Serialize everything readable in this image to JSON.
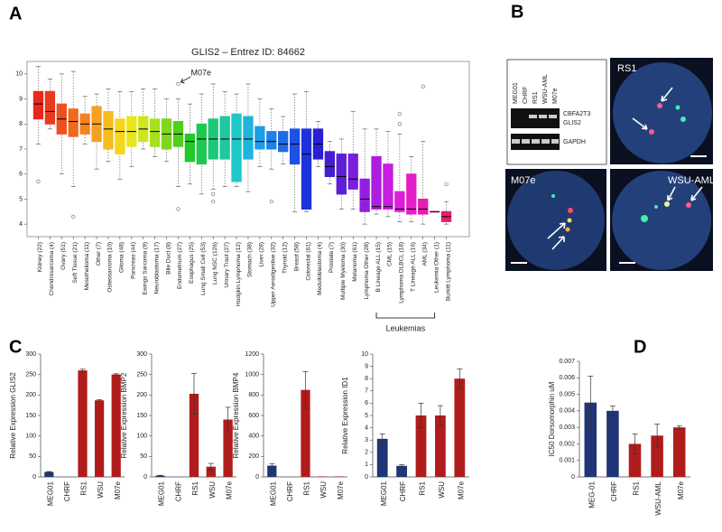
{
  "panel_labels": [
    "A",
    "B",
    "C",
    "D"
  ],
  "gel": {
    "lanes": [
      "MEG01",
      "CHRF",
      "RS1",
      "WSU-AML",
      "M07e"
    ],
    "bands": [
      "CBFA2T3",
      "GLIS2",
      "GAPDH"
    ]
  },
  "fish": [
    "RS1",
    "M07e",
    "WSU-AML"
  ],
  "chart_data": [
    {
      "type": "box",
      "title": "GLIS2 – Entrez ID: 84662",
      "categories": [
        "Kidney (22)",
        "Chondrosarcoma (4)",
        "Ovary (51)",
        "Soft Tissue (21)",
        "Mesothelioma (11)",
        "Other (7)",
        "Osteosarcoma (10)",
        "Glioma (48)",
        "Pancreas (44)",
        "Ewings Sarcoma (9)",
        "Neuroblastoma (17)",
        "Bile Duct (8)",
        "Endometrium (27)",
        "Esophagus (25)",
        "Lung Small Cell (53)",
        "Lung NSC (126)",
        "Urinary Tract (27)",
        "Hodgkin Lymphoma (12)",
        "Stomach (38)",
        "Liver (28)",
        "Upper Aerodigestive (32)",
        "Thyroid (12)",
        "Breast (58)",
        "Colorectal (61)",
        "Medulloblastoma (4)",
        "Prostate (7)",
        "Multiple Myeloma (30)",
        "Melanoma (61)",
        "Lymphoma Other (28)",
        "B Lineage ALL (15)",
        "CML (15)",
        "Lymphoma DLBCL (18)",
        "T Lineage ALL (16)",
        "AML (34)",
        "Leukemia Other (1)",
        "Burkitt Lymphoma (11)"
      ],
      "whisker_low": [
        7.2,
        7.8,
        6.0,
        5.5,
        7.2,
        6.2,
        6.5,
        5.8,
        6.3,
        7.0,
        6.7,
        6.5,
        5.5,
        5.6,
        5.2,
        5.4,
        5.5,
        5.5,
        5.3,
        6.3,
        6.2,
        6.4,
        4.5,
        4.5,
        6.3,
        5.6,
        4.6,
        4.6,
        4.0,
        4.4,
        4.3,
        4.1,
        4.1,
        4.0,
        4.5,
        4.0
      ],
      "q1": [
        8.2,
        8.0,
        7.6,
        7.5,
        7.6,
        7.3,
        7.0,
        6.8,
        7.1,
        7.3,
        7.1,
        7.0,
        7.1,
        6.5,
        6.4,
        6.6,
        6.6,
        5.7,
        6.6,
        7.0,
        7.0,
        6.9,
        6.4,
        4.6,
        6.6,
        5.9,
        5.2,
        5.4,
        4.5,
        4.6,
        4.6,
        4.5,
        4.4,
        4.4,
        4.5,
        4.1
      ],
      "median": [
        8.8,
        8.5,
        8.2,
        8.1,
        8.0,
        8.0,
        7.8,
        7.7,
        7.7,
        7.8,
        7.7,
        7.6,
        7.6,
        7.3,
        7.4,
        7.4,
        7.4,
        7.4,
        7.4,
        7.3,
        7.3,
        7.2,
        7.2,
        6.8,
        7.2,
        6.3,
        5.9,
        5.8,
        5.0,
        4.7,
        4.7,
        4.6,
        4.6,
        4.6,
        4.5,
        4.3
      ],
      "q3": [
        9.3,
        9.3,
        8.8,
        8.6,
        8.4,
        8.7,
        8.5,
        8.2,
        8.3,
        8.3,
        8.2,
        8.2,
        8.1,
        7.6,
        8.0,
        8.2,
        8.3,
        8.4,
        8.3,
        7.9,
        7.7,
        7.7,
        7.8,
        7.8,
        7.8,
        6.9,
        6.8,
        6.8,
        5.8,
        6.7,
        6.4,
        5.3,
        6.0,
        5.0,
        4.5,
        4.5
      ],
      "whisker_high": [
        10.3,
        9.8,
        10.0,
        10.1,
        9.1,
        9.2,
        9.4,
        9.3,
        9.3,
        9.4,
        9.4,
        9.0,
        9.0,
        8.8,
        9.2,
        9.6,
        9.3,
        9.2,
        9.6,
        9.0,
        8.6,
        8.3,
        9.2,
        9.3,
        8.1,
        7.3,
        7.4,
        8.5,
        7.8,
        7.8,
        7.7,
        7.6,
        6.7,
        7.3,
        4.5,
        4.9
      ],
      "outliers": [
        [
          5.7
        ],
        [],
        [],
        [
          4.3
        ],
        [],
        [],
        [],
        [],
        [],
        [],
        [],
        [],
        [
          9.6,
          4.6
        ],
        [],
        [],
        [
          5.2,
          4.9
        ],
        [],
        [],
        [],
        [],
        [
          4.9
        ],
        [],
        [],
        [],
        [],
        [],
        [],
        [],
        [],
        [],
        [],
        [
          8.4,
          8.0
        ],
        [],
        [
          9.5
        ],
        [],
        [
          5.6
        ]
      ],
      "colors": [
        "#e8281e",
        "#e83a1e",
        "#f0501e",
        "#f06a1e",
        "#f58220",
        "#f5a020",
        "#f5bd1e",
        "#f5d51e",
        "#e8e61e",
        "#cde61e",
        "#a8e01e",
        "#7ed61e",
        "#4fd01e",
        "#22c82a",
        "#1ec850",
        "#1ec878",
        "#1ec8a0",
        "#1ec8c8",
        "#1eb4dc",
        "#1e9ce6",
        "#1e82e6",
        "#1e6ae6",
        "#1e50e6",
        "#1e32dc",
        "#2a1ed2",
        "#461ed2",
        "#5e1ed8",
        "#781edc",
        "#941ee0",
        "#ae1ee0",
        "#c81ee0",
        "#dc1ed8",
        "#e61ec8",
        "#e61eb0",
        "#e61e96",
        "#e61e6e"
      ],
      "ylim": [
        3.5,
        10.5
      ],
      "yticks": [
        4,
        5,
        6,
        7,
        8,
        9,
        10
      ],
      "annotation": "M07e",
      "group_label": "Leukemias"
    },
    {
      "type": "bar",
      "ylabel": "Relative Expression GLIS2",
      "categories": [
        "MEG01",
        "CHRF",
        "RS1",
        "WSU",
        "M07e"
      ],
      "values": [
        12,
        0,
        260,
        187,
        250
      ],
      "errors": [
        1,
        0,
        3,
        2,
        2
      ],
      "colors": [
        "#1f3575",
        "#1f3575",
        "#b01c1c",
        "#b01c1c",
        "#b01c1c"
      ],
      "ylim": [
        0,
        300
      ],
      "yticks": [
        0,
        50,
        100,
        150,
        200,
        250,
        300
      ]
    },
    {
      "type": "bar",
      "ylabel": "Relative Expression BMP2",
      "categories": [
        "MEG01",
        "CHRF",
        "RS1",
        "WSU",
        "M07e"
      ],
      "values": [
        3,
        0,
        203,
        25,
        140
      ],
      "errors": [
        1,
        0,
        50,
        8,
        30
      ],
      "colors": [
        "#1f3575",
        "#1f3575",
        "#b01c1c",
        "#b01c1c",
        "#b01c1c"
      ],
      "ylim": [
        0,
        300
      ],
      "yticks": [
        0,
        50,
        100,
        150,
        200,
        250,
        300
      ]
    },
    {
      "type": "bar",
      "ylabel": "Relative Expression BMP4",
      "categories": [
        "MEG01",
        "CHRF",
        "RS1",
        "WSU",
        "M07e"
      ],
      "values": [
        110,
        0,
        850,
        5,
        5
      ],
      "errors": [
        20,
        0,
        180,
        0,
        0
      ],
      "colors": [
        "#1f3575",
        "#1f3575",
        "#b01c1c",
        "#b01c1c",
        "#b01c1c"
      ],
      "ylim": [
        0,
        1200
      ],
      "yticks": [
        0,
        200,
        400,
        600,
        800,
        1000,
        1200
      ]
    },
    {
      "type": "bar",
      "ylabel": "Relative Expression ID1",
      "categories": [
        "MEG01",
        "CHRF",
        "RS1",
        "WSU",
        "M07e"
      ],
      "values": [
        3.1,
        0.9,
        5.0,
        5.0,
        8.0
      ],
      "errors": [
        0.4,
        0.1,
        1.0,
        0.8,
        0.8
      ],
      "colors": [
        "#1f3575",
        "#1f3575",
        "#b01c1c",
        "#b01c1c",
        "#b01c1c"
      ],
      "ylim": [
        0,
        10
      ],
      "yticks": [
        0,
        1,
        2,
        3,
        4,
        5,
        6,
        7,
        8,
        9,
        10
      ]
    },
    {
      "type": "bar",
      "ylabel": "IC50 Dorsomorphin uM",
      "categories": [
        "MEG-01",
        "CHRF",
        "RS1",
        "WSU-AML",
        "M07e"
      ],
      "values": [
        0.0045,
        0.004,
        0.002,
        0.0025,
        0.003
      ],
      "errors": [
        0.0016,
        0.0003,
        0.0006,
        0.0007,
        0.0001
      ],
      "colors": [
        "#1f3575",
        "#1f3575",
        "#b01c1c",
        "#b01c1c",
        "#b01c1c"
      ],
      "ylim": [
        0,
        0.007
      ],
      "yticks": [
        0,
        0.001,
        0.002,
        0.003,
        0.004,
        0.005,
        0.006,
        0.007
      ]
    }
  ]
}
